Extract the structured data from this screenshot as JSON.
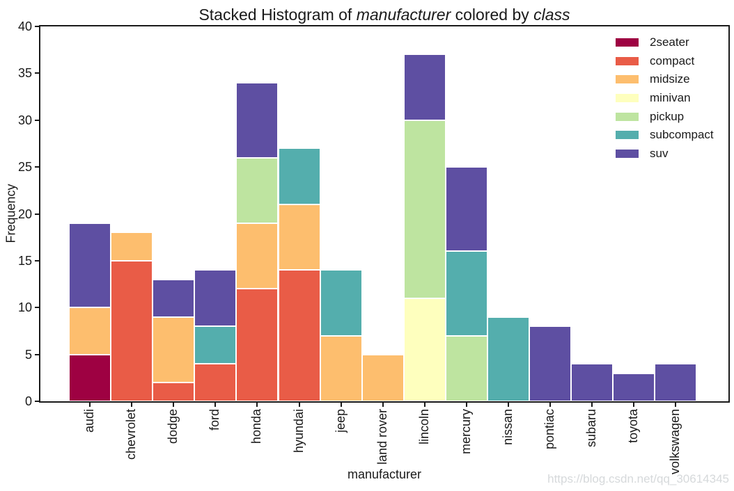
{
  "title": {
    "parts": [
      {
        "text": "Stacked Histogram of ",
        "italic": false
      },
      {
        "text": "manufacturer",
        "italic": true
      },
      {
        "text": " colored by ",
        "italic": false
      },
      {
        "text": "class",
        "italic": true
      }
    ]
  },
  "watermark": "https://blog.csdn.net/qq_30614345",
  "chart_data": {
    "type": "bar",
    "stacked": true,
    "title": "Stacked Histogram of manufacturer colored by class",
    "xlabel": "manufacturer",
    "ylabel": "Frequency",
    "ylim": [
      0,
      40
    ],
    "yticks": [
      0,
      5,
      10,
      15,
      20,
      25,
      30,
      35,
      40
    ],
    "grid": false,
    "legend_position": "upper right",
    "categories": [
      "audi",
      "chevrolet",
      "dodge",
      "ford",
      "honda",
      "hyundai",
      "jeep",
      "land rover",
      "lincoln",
      "mercury",
      "nissan",
      "pontiac",
      "subaru",
      "toyota",
      "volkswagen"
    ],
    "series": [
      {
        "name": "2seater",
        "color": "#9E0142",
        "values": [
          5,
          0,
          0,
          0,
          0,
          0,
          0,
          0,
          0,
          0,
          0,
          0,
          0,
          0,
          0
        ]
      },
      {
        "name": "compact",
        "color": "#E95C47",
        "values": [
          0,
          15,
          2,
          4,
          12,
          14,
          0,
          0,
          0,
          0,
          0,
          0,
          0,
          0,
          0
        ]
      },
      {
        "name": "midsize",
        "color": "#FDBE6E",
        "values": [
          5,
          3,
          7,
          0,
          7,
          7,
          7,
          5,
          0,
          0,
          0,
          0,
          0,
          0,
          0
        ]
      },
      {
        "name": "minivan",
        "color": "#FEFFBE",
        "values": [
          0,
          0,
          0,
          0,
          0,
          0,
          0,
          0,
          11,
          0,
          0,
          0,
          0,
          0,
          0
        ]
      },
      {
        "name": "pickup",
        "color": "#BEE4A0",
        "values": [
          0,
          0,
          0,
          0,
          7,
          0,
          0,
          0,
          19,
          7,
          0,
          0,
          0,
          0,
          0
        ]
      },
      {
        "name": "subcompact",
        "color": "#54AEAD",
        "values": [
          0,
          0,
          0,
          4,
          0,
          6,
          7,
          0,
          0,
          9,
          9,
          0,
          0,
          0,
          0
        ]
      },
      {
        "name": "suv",
        "color": "#5E4FA2",
        "values": [
          9,
          0,
          4,
          6,
          8,
          0,
          0,
          0,
          7,
          9,
          0,
          8,
          4,
          3,
          4
        ]
      }
    ],
    "bar_totals": [
      19,
      18,
      13,
      14,
      34,
      27,
      14,
      5,
      37,
      25,
      9,
      8,
      4,
      3,
      4
    ]
  }
}
